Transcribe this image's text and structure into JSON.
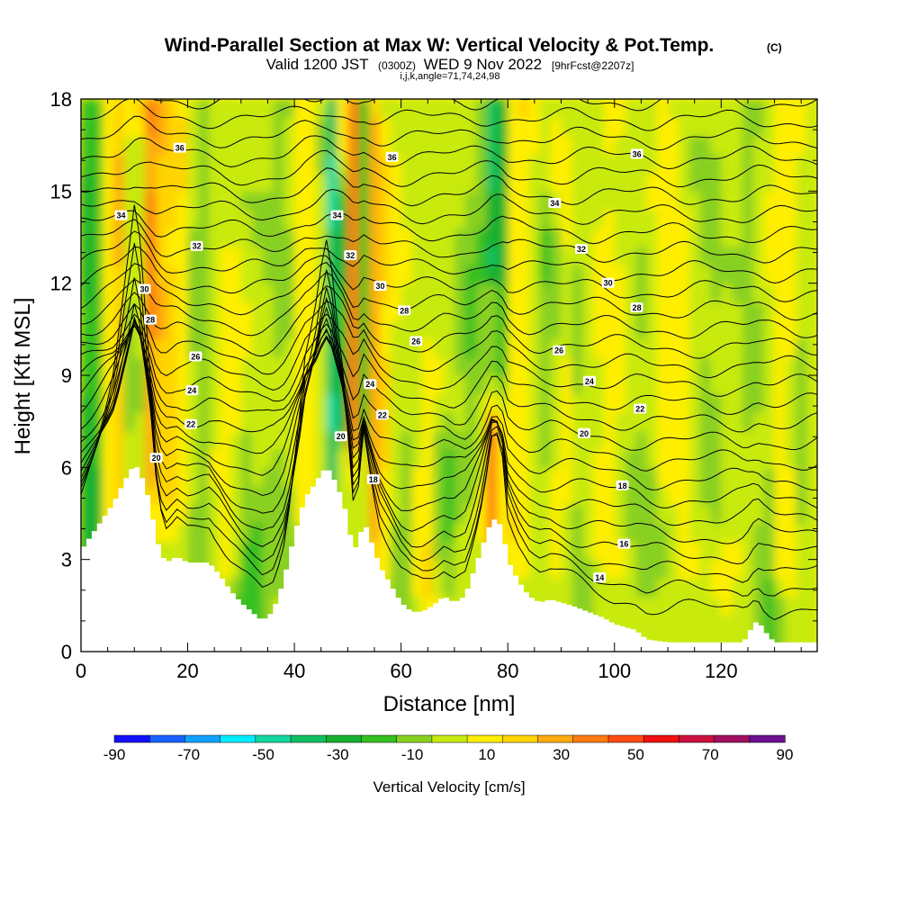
{
  "title": {
    "main": "Wind-Parallel Section at Max W: Vertical Velocity & Pot.Temp.",
    "copyright": "(C)",
    "valid_prefix": "Valid 1200 JST",
    "valid_utc": "(0300Z)",
    "valid_date": "WED 9 Nov 2022",
    "forecast": "[9hrFcst@2207z]",
    "indices": "i,j,k,angle=71,74,24,98"
  },
  "chart_data": {
    "type": "heatmap",
    "xlabel": "Distance [nm]",
    "ylabel": "Height [Kft MSL]",
    "xlim": [
      0,
      138
    ],
    "ylim": [
      0,
      18
    ],
    "x_ticks": [
      0,
      20,
      40,
      60,
      80,
      100,
      120
    ],
    "y_ticks": [
      0,
      3,
      6,
      9,
      12,
      15,
      18
    ],
    "grid": false,
    "colorbar": {
      "label": "Vertical Velocity [cm/s]",
      "ticks": [
        -90,
        -70,
        -50,
        -30,
        -10,
        10,
        30,
        50,
        70,
        90
      ],
      "levels": [
        -90,
        -80,
        -70,
        -60,
        -50,
        -40,
        -30,
        -20,
        -10,
        0,
        10,
        20,
        30,
        40,
        50,
        60,
        70,
        80,
        90
      ],
      "colors": [
        "#1010ff",
        "#1860ff",
        "#10a0ff",
        "#00eeff",
        "#10d8a0",
        "#10c060",
        "#18b030",
        "#34c020",
        "#88d020",
        "#c8ea10",
        "#ffee00",
        "#ffd400",
        "#ffaa10",
        "#ff7a10",
        "#ff4a10",
        "#ee1010",
        "#cc1040",
        "#a01060",
        "#6a1090"
      ]
    },
    "terrain_kft": [
      [
        0,
        3.3
      ],
      [
        2,
        3.8
      ],
      [
        4,
        4.3
      ],
      [
        6,
        4.8
      ],
      [
        8,
        5.5
      ],
      [
        10,
        6.1
      ],
      [
        11,
        5.9
      ],
      [
        12,
        5.4
      ],
      [
        13,
        4.8
      ],
      [
        14,
        3.8
      ],
      [
        15,
        3.2
      ],
      [
        16,
        2.9
      ],
      [
        17,
        3.0
      ],
      [
        18,
        3.1
      ],
      [
        20,
        2.9
      ],
      [
        24,
        2.9
      ],
      [
        26,
        2.5
      ],
      [
        28,
        2.0
      ],
      [
        30,
        1.6
      ],
      [
        32,
        1.3
      ],
      [
        34,
        1.0
      ],
      [
        36,
        1.3
      ],
      [
        38,
        2.3
      ],
      [
        40,
        3.8
      ],
      [
        42,
        5.0
      ],
      [
        44,
        5.5
      ],
      [
        45,
        5.8
      ],
      [
        46,
        6.0
      ],
      [
        47,
        5.8
      ],
      [
        48,
        5.4
      ],
      [
        49,
        5.0
      ],
      [
        50,
        4.3
      ],
      [
        51,
        3.3
      ],
      [
        52,
        3.5
      ],
      [
        53,
        4.3
      ],
      [
        54,
        3.8
      ],
      [
        56,
        2.8
      ],
      [
        58,
        2.2
      ],
      [
        60,
        1.6
      ],
      [
        62,
        1.3
      ],
      [
        64,
        1.3
      ],
      [
        66,
        1.5
      ],
      [
        68,
        1.8
      ],
      [
        70,
        1.6
      ],
      [
        72,
        1.8
      ],
      [
        74,
        2.8
      ],
      [
        76,
        3.8
      ],
      [
        77,
        4.3
      ],
      [
        78,
        4.3
      ],
      [
        79,
        4.0
      ],
      [
        80,
        3.0
      ],
      [
        82,
        2.3
      ],
      [
        84,
        1.8
      ],
      [
        86,
        1.6
      ],
      [
        88,
        1.7
      ],
      [
        90,
        1.6
      ],
      [
        92,
        1.5
      ],
      [
        95,
        1.3
      ],
      [
        98,
        1.1
      ],
      [
        100,
        0.9
      ],
      [
        102,
        0.8
      ],
      [
        104,
        0.7
      ],
      [
        106,
        0.4
      ],
      [
        110,
        0.3
      ],
      [
        124,
        0.3
      ],
      [
        125,
        0.5
      ],
      [
        126,
        0.9
      ],
      [
        127,
        1.0
      ],
      [
        128,
        0.7
      ],
      [
        129,
        0.5
      ],
      [
        130,
        0.3
      ],
      [
        132,
        0.3
      ],
      [
        138,
        0.3
      ]
    ],
    "theta_labels": [
      {
        "text": "36",
        "x": 18.5,
        "y": 16.4
      },
      {
        "text": "36",
        "x": 58.3,
        "y": 16.1
      },
      {
        "text": "36",
        "x": 104.2,
        "y": 16.2
      },
      {
        "text": "34",
        "x": 7.5,
        "y": 14.2
      },
      {
        "text": "34",
        "x": 48.0,
        "y": 14.2
      },
      {
        "text": "34",
        "x": 88.8,
        "y": 14.6
      },
      {
        "text": "32",
        "x": 21.7,
        "y": 13.2
      },
      {
        "text": "32",
        "x": 50.5,
        "y": 12.9
      },
      {
        "text": "32",
        "x": 93.8,
        "y": 13.1
      },
      {
        "text": "30",
        "x": 11.9,
        "y": 11.8
      },
      {
        "text": "30",
        "x": 56.1,
        "y": 11.9
      },
      {
        "text": "30",
        "x": 98.8,
        "y": 12.0
      },
      {
        "text": "28",
        "x": 13.0,
        "y": 10.8
      },
      {
        "text": "28",
        "x": 60.6,
        "y": 11.1
      },
      {
        "text": "28",
        "x": 104.2,
        "y": 11.2
      },
      {
        "text": "26",
        "x": 21.5,
        "y": 9.6
      },
      {
        "text": "26",
        "x": 62.8,
        "y": 10.1
      },
      {
        "text": "26",
        "x": 89.6,
        "y": 9.8
      },
      {
        "text": "24",
        "x": 20.8,
        "y": 8.5
      },
      {
        "text": "24",
        "x": 54.2,
        "y": 8.7
      },
      {
        "text": "24",
        "x": 95.3,
        "y": 8.8
      },
      {
        "text": "22",
        "x": 20.6,
        "y": 7.4
      },
      {
        "text": "22",
        "x": 56.5,
        "y": 7.7
      },
      {
        "text": "22",
        "x": 104.8,
        "y": 7.9
      },
      {
        "text": "20",
        "x": 14.1,
        "y": 6.3
      },
      {
        "text": "20",
        "x": 48.7,
        "y": 7.0
      },
      {
        "text": "20",
        "x": 94.3,
        "y": 7.1
      },
      {
        "text": "18",
        "x": 54.8,
        "y": 5.6
      },
      {
        "text": "18",
        "x": 101.5,
        "y": 5.4
      },
      {
        "text": "16",
        "x": 101.8,
        "y": 3.5
      },
      {
        "text": "14",
        "x": 97.2,
        "y": 2.4
      }
    ]
  }
}
